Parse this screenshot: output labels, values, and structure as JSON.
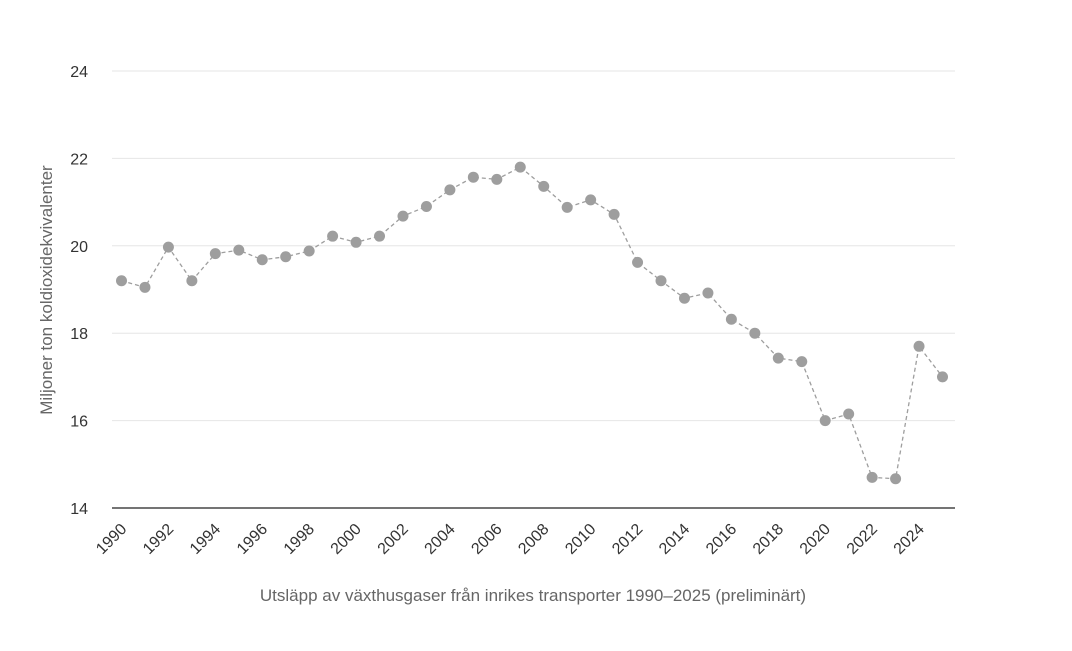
{
  "chart_data": {
    "type": "line",
    "xlabel": "Utsläpp av växthusgaser från inrikes transporter 1990–2025 (preliminärt)",
    "ylabel": "Miljoner ton koldioxidekvivalenter",
    "ylim": [
      14,
      24
    ],
    "yticks": [
      "14",
      "16",
      "18",
      "20",
      "22",
      "24"
    ],
    "xticks": [
      "1990",
      "1992",
      "1994",
      "1996",
      "1998",
      "2000",
      "2002",
      "2004",
      "2006",
      "2008",
      "2010",
      "2012",
      "2014",
      "2016",
      "2018",
      "2020",
      "2022",
      "2024"
    ],
    "grid": true,
    "x": [
      1990,
      1991,
      1992,
      1993,
      1994,
      1995,
      1996,
      1997,
      1998,
      1999,
      2000,
      2001,
      2002,
      2003,
      2004,
      2005,
      2006,
      2007,
      2008,
      2009,
      2010,
      2011,
      2012,
      2013,
      2014,
      2015,
      2016,
      2017,
      2018,
      2019,
      2020,
      2021,
      2022,
      2023,
      2024,
      2025
    ],
    "series": [
      {
        "values": [
          19.2,
          19.05,
          19.97,
          19.2,
          19.82,
          19.9,
          19.68,
          19.75,
          19.88,
          20.22,
          20.08,
          20.22,
          20.68,
          20.9,
          21.28,
          21.57,
          21.52,
          21.8,
          21.36,
          20.88,
          21.05,
          20.72,
          19.62,
          19.2,
          18.8,
          18.92,
          18.32,
          18.0,
          17.43,
          17.35,
          16.0,
          16.15,
          14.7,
          14.67,
          17.7,
          17.0
        ],
        "color": "#9e9e9e"
      }
    ]
  }
}
